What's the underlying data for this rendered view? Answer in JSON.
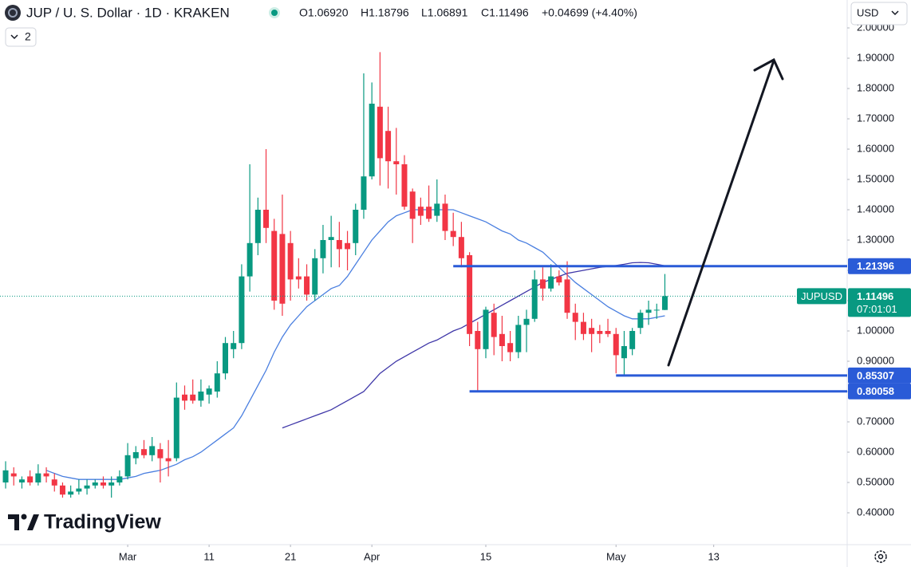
{
  "header": {
    "title": "JUP / U. S. Dollar · 1D · KRAKEN",
    "ohlc": [
      "O1.06920",
      "H1.18796",
      "L1.06891",
      "C1.11496",
      "+0.04699 (+4.40%)"
    ],
    "currency": "USD",
    "indicators_count": "2",
    "brand": "TradingView"
  },
  "chart_data": {
    "type": "candlestick",
    "up_color": "#089981",
    "down_color": "#f23645",
    "grid": false,
    "open": [
      0.5,
      0.53,
      0.5,
      0.52,
      0.5,
      0.53,
      0.51,
      0.49,
      0.46,
      0.47,
      0.48,
      0.49,
      0.5,
      0.49,
      0.5,
      0.52,
      0.58,
      0.61,
      0.59,
      0.61,
      0.58,
      0.58,
      0.79,
      0.79,
      0.77,
      0.79,
      0.8,
      0.86,
      0.94,
      0.96,
      1.18,
      1.29,
      1.4,
      1.33,
      1.32,
      1.29,
      1.18,
      1.18,
      1.12,
      1.24,
      1.3,
      1.3,
      1.29,
      1.29,
      1.4,
      1.51,
      1.74,
      1.66,
      1.56,
      1.55,
      1.46,
      1.41,
      1.41,
      1.38,
      1.42,
      1.33,
      1.31,
      1.25,
      1.0,
      0.94,
      1.06,
      0.99,
      0.96,
      0.93,
      1.02,
      1.04,
      1.17,
      1.14,
      1.18,
      1.17,
      1.06,
      1.03,
      1.01,
      1.0,
      1.0,
      0.99,
      0.91,
      0.94,
      1.01,
      1.06,
      1.07,
      1.0692
    ],
    "high": [
      0.57,
      0.55,
      0.52,
      0.54,
      0.56,
      0.55,
      0.53,
      0.5,
      0.49,
      0.51,
      0.51,
      0.51,
      0.52,
      0.52,
      0.54,
      0.63,
      0.62,
      0.64,
      0.65,
      0.63,
      0.64,
      0.83,
      0.82,
      0.84,
      0.84,
      0.82,
      0.9,
      0.98,
      1.0,
      1.22,
      1.55,
      1.44,
      1.6,
      1.37,
      1.45,
      1.33,
      1.24,
      1.22,
      1.27,
      1.35,
      1.38,
      1.36,
      1.33,
      1.42,
      1.85,
      1.82,
      1.92,
      1.74,
      1.67,
      1.58,
      1.47,
      1.44,
      1.48,
      1.5,
      1.45,
      1.39,
      1.36,
      1.26,
      1.03,
      1.08,
      1.09,
      1.05,
      1.0,
      1.05,
      1.07,
      1.2,
      1.21,
      1.22,
      1.2,
      1.23,
      1.09,
      1.06,
      1.04,
      1.02,
      1.04,
      1.01,
      1.0,
      1.01,
      1.07,
      1.1,
      1.09,
      1.18796
    ],
    "low": [
      0.48,
      0.49,
      0.48,
      0.49,
      0.49,
      0.5,
      0.47,
      0.45,
      0.45,
      0.46,
      0.46,
      0.48,
      0.48,
      0.45,
      0.49,
      0.51,
      0.56,
      0.58,
      0.57,
      0.5,
      0.52,
      0.57,
      0.74,
      0.76,
      0.75,
      0.76,
      0.78,
      0.84,
      0.91,
      0.94,
      1.13,
      1.25,
      1.29,
      1.07,
      1.05,
      1.1,
      1.14,
      1.1,
      1.1,
      1.19,
      1.21,
      1.21,
      1.2,
      1.25,
      1.37,
      1.5,
      1.48,
      1.47,
      1.45,
      1.4,
      1.29,
      1.35,
      1.36,
      1.36,
      1.3,
      1.28,
      1.21,
      0.95,
      0.8,
      0.91,
      0.92,
      0.9,
      0.9,
      0.91,
      0.93,
      1.03,
      1.1,
      1.13,
      1.15,
      1.04,
      0.97,
      0.97,
      0.93,
      0.96,
      0.98,
      0.86,
      0.853,
      0.92,
      0.99,
      1.02,
      1.04,
      1.06891
    ],
    "close": [
      0.54,
      0.52,
      0.51,
      0.5,
      0.53,
      0.52,
      0.49,
      0.46,
      0.47,
      0.48,
      0.49,
      0.5,
      0.49,
      0.5,
      0.52,
      0.59,
      0.6,
      0.59,
      0.62,
      0.58,
      0.57,
      0.78,
      0.77,
      0.77,
      0.8,
      0.81,
      0.86,
      0.96,
      0.96,
      1.18,
      1.29,
      1.4,
      1.34,
      1.1,
      1.09,
      1.17,
      1.17,
      1.12,
      1.24,
      1.3,
      1.31,
      1.27,
      1.27,
      1.4,
      1.51,
      1.75,
      1.57,
      1.56,
      1.55,
      1.41,
      1.37,
      1.38,
      1.37,
      1.42,
      1.33,
      1.31,
      1.24,
      0.99,
      0.94,
      1.07,
      0.98,
      0.95,
      0.93,
      1.02,
      1.04,
      1.17,
      1.14,
      1.18,
      1.16,
      1.06,
      1.03,
      0.99,
      0.99,
      0.99,
      0.99,
      0.92,
      0.95,
      1.0,
      1.06,
      1.07,
      1.07,
      1.11496
    ],
    "lines": [
      {
        "color": "#4a7fe0",
        "values": [
          null,
          null,
          null,
          null,
          null,
          0.54,
          0.53,
          0.52,
          0.515,
          0.51,
          0.51,
          0.51,
          0.51,
          0.51,
          0.51,
          0.515,
          0.52,
          0.53,
          0.535,
          0.54,
          0.55,
          0.56,
          0.575,
          0.585,
          0.6,
          0.62,
          0.64,
          0.66,
          0.68,
          0.72,
          0.77,
          0.82,
          0.87,
          0.93,
          0.98,
          1.02,
          1.05,
          1.08,
          1.1,
          1.12,
          1.14,
          1.15,
          1.18,
          1.22,
          1.26,
          1.3,
          1.33,
          1.36,
          1.38,
          1.39,
          1.4,
          1.4,
          1.4,
          1.4,
          1.4,
          1.4,
          1.39,
          1.38,
          1.37,
          1.36,
          1.345,
          1.33,
          1.32,
          1.3,
          1.29,
          1.275,
          1.26,
          1.235,
          1.21,
          1.185,
          1.16,
          1.14,
          1.12,
          1.1,
          1.08,
          1.065,
          1.05,
          1.04,
          1.04,
          1.04,
          1.045,
          1.05
        ]
      },
      {
        "color": "#3f37a8",
        "values": [
          null,
          null,
          null,
          null,
          null,
          null,
          null,
          null,
          null,
          null,
          null,
          null,
          null,
          null,
          null,
          null,
          null,
          null,
          null,
          null,
          null,
          null,
          null,
          null,
          null,
          null,
          null,
          null,
          null,
          null,
          null,
          null,
          null,
          null,
          0.68,
          0.69,
          0.7,
          0.71,
          0.72,
          0.73,
          0.74,
          0.755,
          0.77,
          0.785,
          0.8,
          0.83,
          0.86,
          0.88,
          0.9,
          0.915,
          0.93,
          0.945,
          0.96,
          0.97,
          0.985,
          1.0,
          1.01,
          1.025,
          1.04,
          1.055,
          1.07,
          1.085,
          1.1,
          1.115,
          1.13,
          1.145,
          1.16,
          1.17,
          1.18,
          1.19,
          1.195,
          1.2,
          1.205,
          1.21,
          1.213,
          1.216,
          1.22,
          1.225,
          1.226,
          1.225,
          1.22,
          1.215
        ]
      }
    ],
    "levels": [
      {
        "value": 1.21396,
        "x": 55
      },
      {
        "value": 0.85307,
        "x": 75
      },
      {
        "value": 0.80058,
        "x": 57
      }
    ],
    "level_color": "#2a5bd7",
    "symbol_label": "JUPUSD",
    "countdown": "07:01:01",
    "ylim": [
      0.3,
      2.0
    ],
    "yticks": [
      {
        "value": 0.4,
        "label": "0.40000"
      },
      {
        "value": 0.5,
        "label": "0.50000"
      },
      {
        "value": 0.6,
        "label": "0.60000"
      },
      {
        "value": 0.7,
        "label": "0.70000"
      },
      {
        "value": 0.8,
        "label": "0.80000"
      },
      {
        "value": 0.9,
        "label": "0.90000"
      },
      {
        "value": 1.0,
        "label": "1.00000"
      },
      {
        "value": 1.1,
        "label": "1.10000"
      },
      {
        "value": 1.2,
        "label": "1.20000"
      },
      {
        "value": 1.3,
        "label": "1.30000"
      },
      {
        "value": 1.4,
        "label": "1.40000"
      },
      {
        "value": 1.5,
        "label": "1.50000"
      },
      {
        "value": 1.6,
        "label": "1.60000"
      },
      {
        "value": 1.7,
        "label": "1.70000"
      },
      {
        "value": 1.8,
        "label": "1.80000"
      },
      {
        "value": 1.9,
        "label": "1.90000"
      },
      {
        "value": 2.0,
        "label": "2.00000"
      }
    ],
    "xlim": [
      -0.69,
      103.4
    ],
    "xticks": [
      {
        "value": 15,
        "label": "Mar"
      },
      {
        "value": 25,
        "label": "11"
      },
      {
        "value": 35,
        "label": "21"
      },
      {
        "value": 45,
        "label": "Apr"
      },
      {
        "value": 59,
        "label": "15"
      },
      {
        "value": 75,
        "label": "May"
      },
      {
        "value": 87,
        "label": "13"
      }
    ]
  }
}
